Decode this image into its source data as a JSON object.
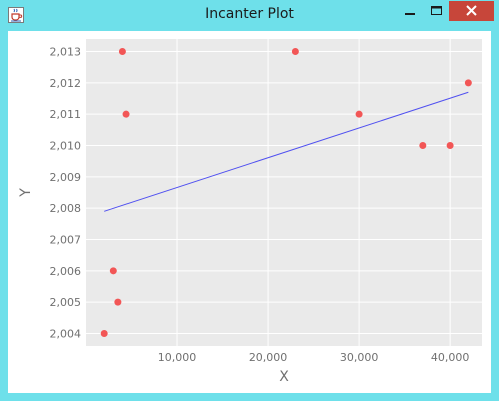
{
  "window": {
    "title": "Incanter Plot",
    "icons": {
      "app": "java-cup-icon",
      "minimize": "minimize-icon",
      "maximize": "maximize-icon",
      "close": "close-icon"
    }
  },
  "colors": {
    "frame": "#6ee0ea",
    "plot_background": "#eaeaea",
    "grid": "#ffffff",
    "point": "#f25656",
    "line": "#5050f0",
    "axis_text": "#707070",
    "close_button": "#c7463a"
  },
  "chart_data": {
    "type": "scatter",
    "xlabel": "X",
    "ylabel": "Y",
    "xlim": [
      0,
      43500
    ],
    "ylim": [
      2003.6,
      2013.4
    ],
    "x_ticks": [
      10000,
      20000,
      30000,
      40000
    ],
    "x_tick_labels": [
      "10,000",
      "20,000",
      "30,000",
      "40,000"
    ],
    "y_ticks": [
      2004,
      2005,
      2006,
      2007,
      2008,
      2009,
      2010,
      2011,
      2012,
      2013
    ],
    "y_tick_labels": [
      "2,004",
      "2,005",
      "2,006",
      "2,007",
      "2,008",
      "2,009",
      "2,010",
      "2,011",
      "2,012",
      "2,013"
    ],
    "grid": true,
    "legend": "none",
    "series": [
      {
        "type": "scatter",
        "x": [
          2000,
          3000,
          3500,
          4000,
          4400,
          23000,
          30000,
          37000,
          40000,
          42000
        ],
        "y": [
          2004,
          2006,
          2005,
          2013,
          2011,
          2013,
          2011,
          2010,
          2010,
          2012
        ]
      },
      {
        "type": "line",
        "x": [
          2000,
          42000
        ],
        "y": [
          2007.9,
          2011.7
        ]
      }
    ]
  }
}
